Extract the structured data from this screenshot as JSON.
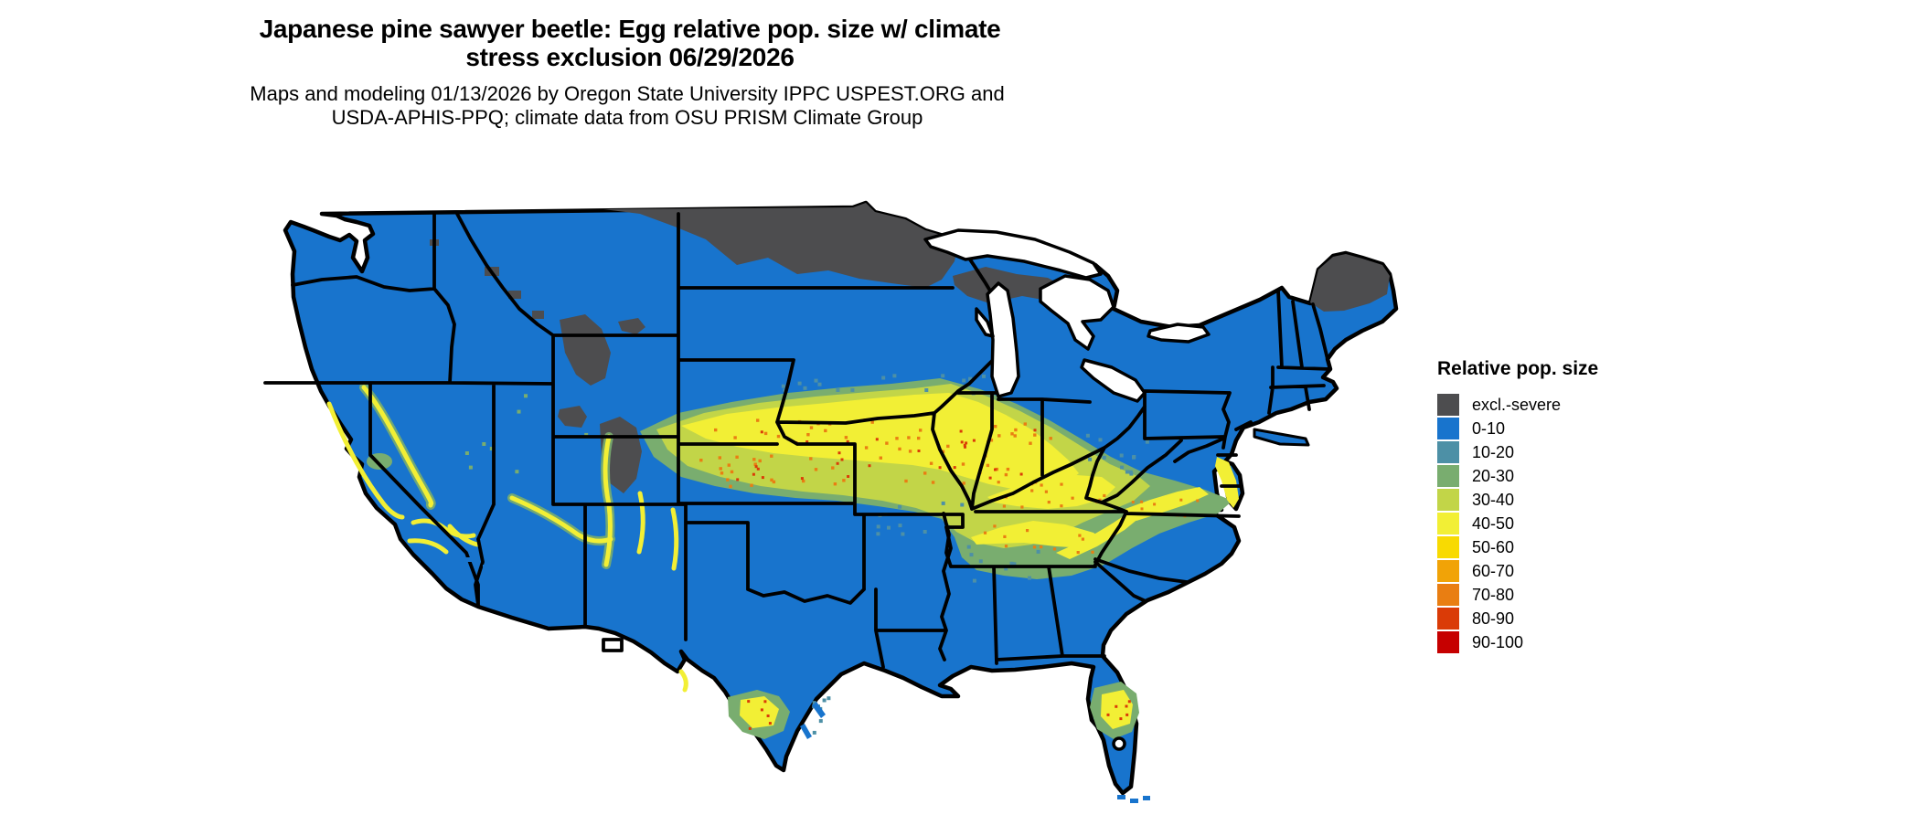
{
  "title": {
    "line1": "Japanese pine sawyer beetle: Egg relative pop. size w/ climate",
    "line2": "stress exclusion 06/29/2026"
  },
  "subtitle": {
    "line1": "Maps and modeling 01/13/2026 by Oregon State University IPPC USPEST.ORG and",
    "line2": "USDA-APHIS-PPQ; climate data from OSU PRISM Climate Group"
  },
  "map": {
    "region": "Contiguous United States",
    "background": "#ffffff",
    "state_border_color": "#000000"
  },
  "legend": {
    "title": "Relative pop. size",
    "items": [
      {
        "label": "excl.-severe",
        "color": "#4d4d4f"
      },
      {
        "label": "0-10",
        "color": "#1874cd"
      },
      {
        "label": "10-20",
        "color": "#4d90a6"
      },
      {
        "label": "20-30",
        "color": "#79ad6f"
      },
      {
        "label": "30-40",
        "color": "#c2d548"
      },
      {
        "label": "40-50",
        "color": "#f2ef35"
      },
      {
        "label": "50-60",
        "color": "#f8da02"
      },
      {
        "label": "60-70",
        "color": "#f1a307"
      },
      {
        "label": "70-80",
        "color": "#e97e12"
      },
      {
        "label": "80-90",
        "color": "#da3b07"
      },
      {
        "label": "90-100",
        "color": "#c60000"
      }
    ]
  }
}
